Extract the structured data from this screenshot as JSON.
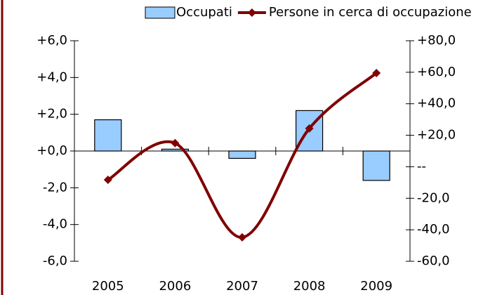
{
  "chart_data": {
    "type": "bar",
    "categories": [
      "2005",
      "2006",
      "2007",
      "2008",
      "2009"
    ],
    "series": [
      {
        "name": "Occupati",
        "type": "bar",
        "color": "#99ccff",
        "values": [
          1.7,
          0.1,
          -0.4,
          2.2,
          -1.6
        ]
      },
      {
        "name": "Persone in cerca di occupazione",
        "type": "line",
        "axis": "y2",
        "color": "#800000",
        "smooth": true,
        "values": [
          -8.3,
          15.0,
          -44.8,
          24.3,
          59.5
        ]
      }
    ],
    "ylim": [
      -6,
      6
    ],
    "yticks": [
      {
        "value": -6,
        "label": "-6,0"
      },
      {
        "value": -4,
        "label": "-4,0"
      },
      {
        "value": -2,
        "label": "-2,0"
      },
      {
        "value": 0,
        "label": "+0,0"
      },
      {
        "value": 2,
        "label": "+2,0"
      },
      {
        "value": 4,
        "label": "+4,0"
      },
      {
        "value": 6,
        "label": "+6,0"
      }
    ],
    "y2lim": [
      -60,
      80
    ],
    "y2ticks": [
      {
        "value": -60,
        "label": "-60,0"
      },
      {
        "value": -40,
        "label": "-40,0"
      },
      {
        "value": -20,
        "label": "-20,0"
      },
      {
        "value": 0,
        "label": "--"
      },
      {
        "value": 20,
        "label": "+20,0"
      },
      {
        "value": 40,
        "label": "+40,0"
      },
      {
        "value": 60,
        "label": "+60,0"
      },
      {
        "value": 80,
        "label": "+80,0"
      }
    ],
    "negative_tick_color": "#ff0000",
    "legend": "top"
  }
}
